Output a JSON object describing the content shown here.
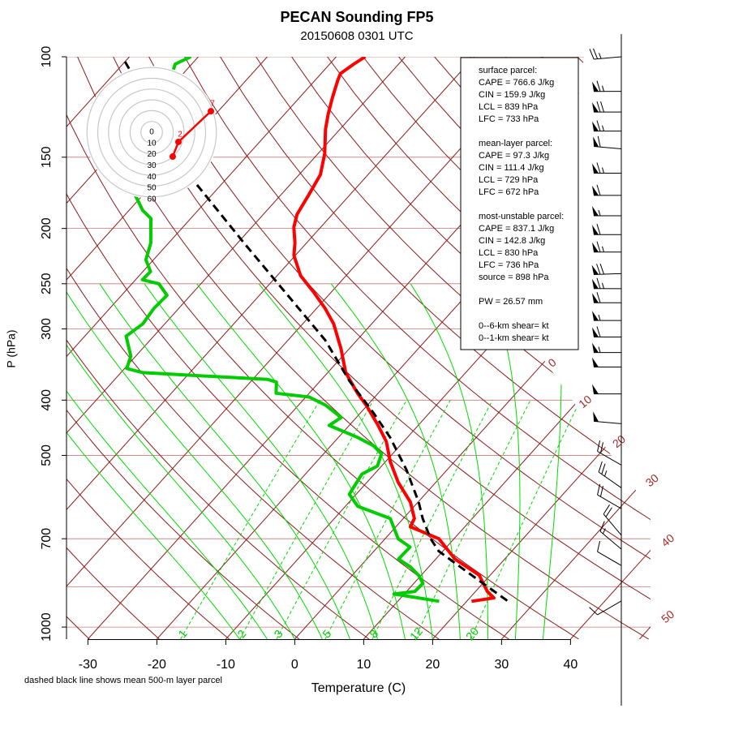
{
  "chart_data": {
    "type": "skewt",
    "title": "PECAN Sounding FP5",
    "subtitle": "20150608 0301 UTC",
    "x_label": "Temperature (C)",
    "y_label": "P (hPa)",
    "note": "dashed black line shows mean 500-m layer parcel",
    "xlim": [
      -33.1,
      51.6
    ],
    "ylim": [
      1050,
      100
    ],
    "xticks": [
      -30,
      -20,
      -10,
      0,
      10,
      20,
      30,
      40
    ],
    "yticks": [
      100,
      150,
      200,
      250,
      300,
      400,
      500,
      700,
      1000
    ],
    "ygrid": [
      100,
      150,
      200,
      250,
      300,
      400,
      500,
      700,
      850,
      1000
    ],
    "isotherm_labels": [
      0,
      10,
      20,
      30,
      40,
      50
    ],
    "mixing_ratio_labels": [
      1,
      2,
      3,
      5,
      8,
      12,
      20
    ],
    "series": [
      {
        "color": "#ff0000",
        "dashed": false,
        "pressure": [
          100,
          103,
          107,
          110,
          118,
          126,
          134,
          148,
          161,
          174,
          189,
          199,
          212,
          223,
          242,
          258,
          276,
          294,
          325,
          358,
          389,
          408,
          443,
          473,
          513,
          557,
          604,
          645,
          667,
          700,
          760,
          811,
          866,
          889,
          901
        ],
        "temperature": [
          -65.8,
          -66.5,
          -67.2,
          -66.7,
          -65.2,
          -63.7,
          -62.1,
          -59.0,
          -56.9,
          -56.0,
          -55.1,
          -53.9,
          -51.7,
          -50.2,
          -46.6,
          -42.7,
          -38.8,
          -35.5,
          -31.2,
          -27.4,
          -23.0,
          -20.2,
          -15.8,
          -12.5,
          -9.3,
          -5.5,
          -1.1,
          1.6,
          2.1,
          7.8,
          12.8,
          18.4,
          21.7,
          23.5,
          20.7
        ]
      },
      {
        "color": "#00cc00",
        "dashed": false,
        "pressure": [
          100,
          103,
          172,
          186,
          192,
          212,
          227,
          238,
          246,
          250,
          262,
          276,
          294,
          309,
          335,
          352,
          358,
          368,
          372,
          389,
          395,
          408,
          429,
          443,
          465,
          481,
          497,
          522,
          539,
          585,
          614,
          645,
          700,
          724,
          760,
          785,
          811,
          838,
          866,
          875,
          901
        ],
        "temperature": [
          -91.1,
          -92.4,
          -81.9,
          -78.0,
          -75.8,
          -72.6,
          -71.1,
          -68.9,
          -69.0,
          -66.1,
          -63.4,
          -63.6,
          -63.2,
          -64.0,
          -60.7,
          -59.7,
          -56.8,
          -37.8,
          -36.2,
          -34.8,
          -29.5,
          -26.1,
          -22.2,
          -22.9,
          -17.2,
          -13.8,
          -11.6,
          -10.6,
          -11.8,
          -11.0,
          -8.2,
          -1.9,
          1.9,
          4.7,
          4.6,
          7.4,
          9.6,
          11.3,
          11.2,
          8.5,
          16.0
        ]
      },
      {
        "color": "#000000",
        "dashed": true,
        "pressure": [
          102,
          166,
          212,
          314,
          370,
          422,
          465,
          530,
          604,
          645,
          700,
          736,
          811,
          901
        ],
        "temperature": [
          -100.0,
          -74.1,
          -59.1,
          -34.6,
          -25.8,
          -18.0,
          -12.5,
          -5.9,
          0.1,
          2.8,
          6.6,
          9.4,
          17.3,
          26.0
        ]
      }
    ],
    "wind": {
      "pressure": [
        100,
        115,
        125,
        135,
        145,
        160,
        175,
        190,
        205,
        220,
        240,
        255,
        270,
        290,
        310,
        330,
        350,
        390,
        440,
        520,
        570,
        620,
        690,
        730,
        780,
        900
      ],
      "direction": [
        265,
        270,
        270,
        270,
        275,
        270,
        270,
        270,
        270,
        270,
        268,
        270,
        270,
        270,
        270,
        270,
        270,
        270,
        275,
        300,
        305,
        300,
        320,
        310,
        300,
        240
      ],
      "speed": [
        25,
        65,
        70,
        65,
        60,
        65,
        60,
        55,
        60,
        65,
        70,
        65,
        60,
        55,
        60,
        55,
        50,
        50,
        50,
        20,
        25,
        20,
        20,
        15,
        10,
        10
      ]
    },
    "hodograph": {
      "rings": [
        0,
        10,
        20,
        30,
        40,
        50,
        60
      ],
      "u": [
        19.5,
        24.8,
        54.9
      ],
      "v": [
        -22.6,
        -9.0,
        19.5
      ],
      "labels": [
        null,
        2,
        7
      ],
      "color": "#ff0000"
    },
    "info_box": [
      [
        "surface parcel:",
        "CAPE = 766.6 J/kg",
        "CIN = 159.9 J/kg",
        "LCL = 839 hPa",
        "LFC = 733 hPa"
      ],
      [
        "mean-layer parcel:",
        "CAPE = 97.3 J/kg",
        "CIN = 111.4 J/kg",
        "LCL = 729 hPa",
        "LFC = 672 hPa"
      ],
      [
        "most-unstable parcel:",
        "CAPE = 837.1 J/kg",
        "CIN = 142.8 J/kg",
        "LCL = 830 hPa",
        "LFC = 736 hPa",
        "source = 898 hPa"
      ],
      [
        "PW =  26.57 mm"
      ],
      [
        "0--6-km shear=  kt",
        "0--1-km shear=  kt"
      ]
    ]
  }
}
